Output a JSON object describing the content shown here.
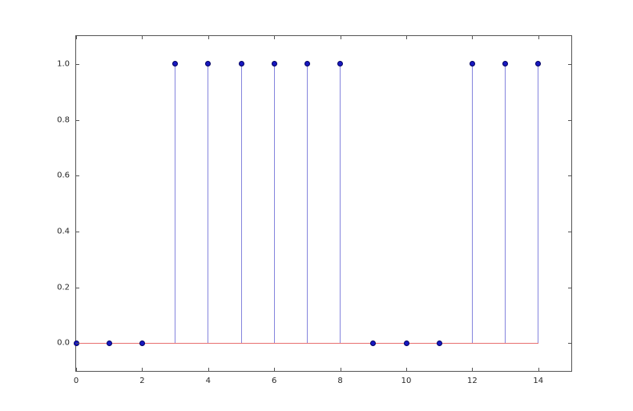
{
  "figure": {
    "background_color": "#ffffff",
    "spine_color": "#555555",
    "tick_label_color": "#262626"
  },
  "chart_data": {
    "type": "stem",
    "title": "",
    "xlabel": "",
    "ylabel": "",
    "x": [
      0,
      1,
      2,
      3,
      4,
      5,
      6,
      7,
      8,
      9,
      10,
      11,
      12,
      13,
      14
    ],
    "values": [
      0,
      0,
      0,
      1,
      1,
      1,
      1,
      1,
      1,
      0,
      0,
      0,
      1,
      1,
      1
    ],
    "xlim": [
      0,
      15
    ],
    "ylim": [
      -0.1,
      1.1
    ],
    "xticks": [
      0,
      2,
      4,
      6,
      8,
      10,
      12,
      14
    ],
    "xtick_labels": [
      "0",
      "2",
      "4",
      "6",
      "8",
      "10",
      "12",
      "14"
    ],
    "yticks": [
      0.0,
      0.2,
      0.4,
      0.6,
      0.8,
      1.0
    ],
    "ytick_labels": [
      "0.0",
      "0.2",
      "0.4",
      "0.6",
      "0.8",
      "1.0"
    ],
    "legend": null,
    "grid": false,
    "tick_direction": "in",
    "ticks_on_all_spines": true,
    "stem_color": "#8585dd",
    "marker_fill": "#1818c0",
    "marker_edge": "#000060",
    "baseline_color": "#e86f6f",
    "baseline": {
      "y": 0,
      "x_start": 0,
      "x_end": 14
    }
  }
}
